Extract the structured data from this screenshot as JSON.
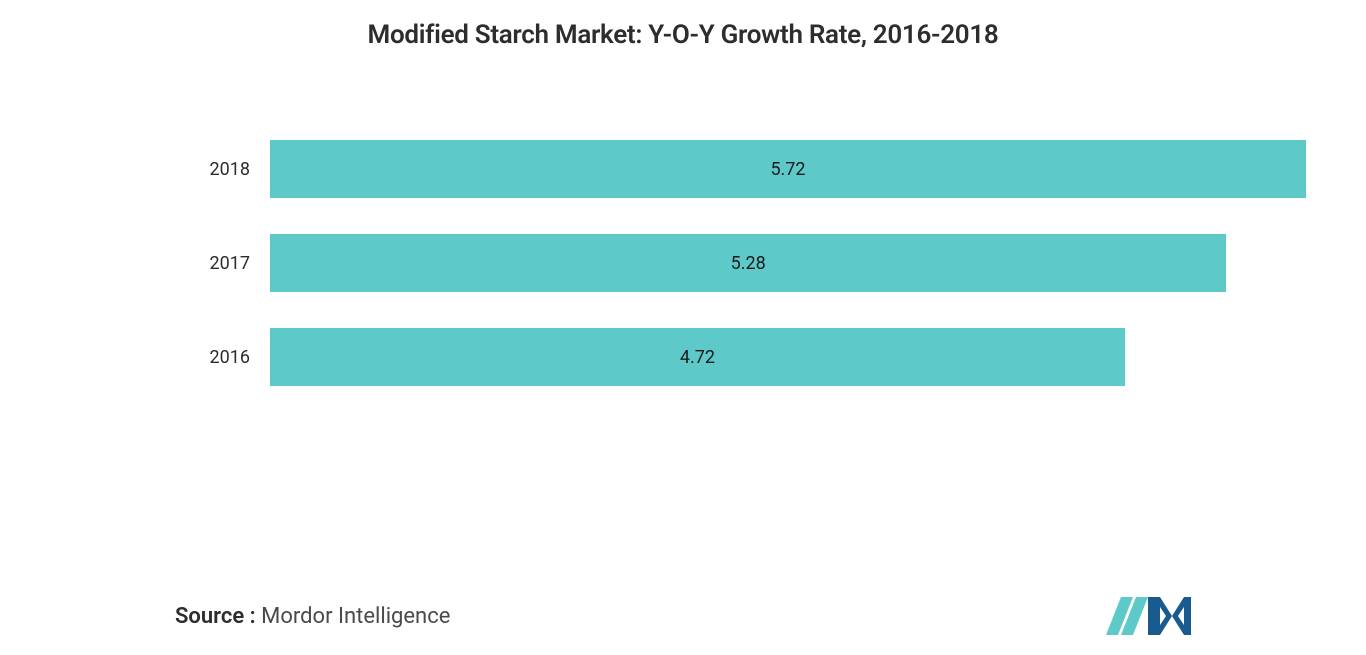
{
  "chart": {
    "type": "bar-horizontal",
    "title": "Modified Starch Market: Y-O-Y Growth Rate, 2016-2018",
    "title_fontsize": 26,
    "title_color": "#2d2d2d",
    "background_color": "#ffffff",
    "bar_color": "#5ec9c9",
    "value_label_color": "#1a1a1a",
    "value_label_fontsize": 18,
    "axis_label_color": "#2d2d2d",
    "axis_label_fontsize": 18,
    "x_max": 5.72,
    "bars": [
      {
        "label": "2018",
        "value": 5.72,
        "value_text": "5.72"
      },
      {
        "label": "2017",
        "value": 5.28,
        "value_text": "5.28"
      },
      {
        "label": "2016",
        "value": 4.72,
        "value_text": "4.72"
      }
    ]
  },
  "footer": {
    "source_label": "Source :",
    "source_value": "Mordor Intelligence",
    "logo_type": "MI",
    "logo_bar_color": "#1a5b8f",
    "logo_diag_color": "#5ec9c9"
  }
}
